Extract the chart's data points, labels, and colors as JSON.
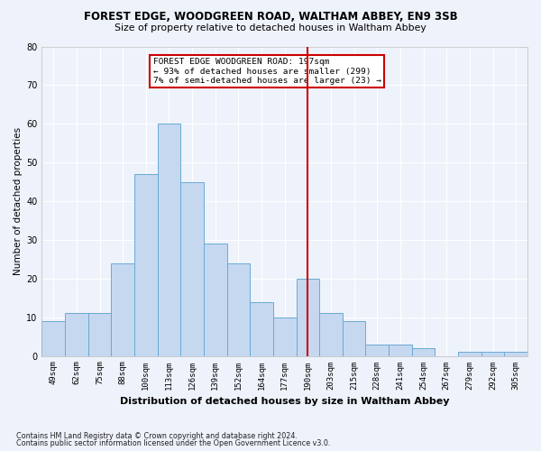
{
  "title1": "FOREST EDGE, WOODGREEN ROAD, WALTHAM ABBEY, EN9 3SB",
  "title2": "Size of property relative to detached houses in Waltham Abbey",
  "xlabel": "Distribution of detached houses by size in Waltham Abbey",
  "ylabel": "Number of detached properties",
  "categories": [
    "49sqm",
    "62sqm",
    "75sqm",
    "88sqm",
    "100sqm",
    "113sqm",
    "126sqm",
    "139sqm",
    "152sqm",
    "164sqm",
    "177sqm",
    "190sqm",
    "203sqm",
    "215sqm",
    "228sqm",
    "241sqm",
    "254sqm",
    "267sqm",
    "279sqm",
    "292sqm",
    "305sqm"
  ],
  "values": [
    9,
    11,
    11,
    24,
    47,
    60,
    45,
    29,
    24,
    14,
    10,
    20,
    11,
    9,
    3,
    3,
    2,
    0,
    1,
    1,
    1
  ],
  "bar_color": "#c5d8f0",
  "bar_edge_color": "#6aaad4",
  "vline_x": 11,
  "vline_color": "#cc0000",
  "annotation_title": "FOREST EDGE WOODGREEN ROAD: 197sqm",
  "annotation_line2": "← 93% of detached houses are smaller (299)",
  "annotation_line3": "7% of semi-detached houses are larger (23) →",
  "annotation_box_color": "#ffffff",
  "annotation_box_edge": "#cc0000",
  "ylim": [
    0,
    80
  ],
  "yticks": [
    0,
    10,
    20,
    30,
    40,
    50,
    60,
    70,
    80
  ],
  "footer1": "Contains HM Land Registry data © Crown copyright and database right 2024.",
  "footer2": "Contains public sector information licensed under the Open Government Licence v3.0.",
  "bg_color": "#eef2fb",
  "grid_color": "#ffffff"
}
